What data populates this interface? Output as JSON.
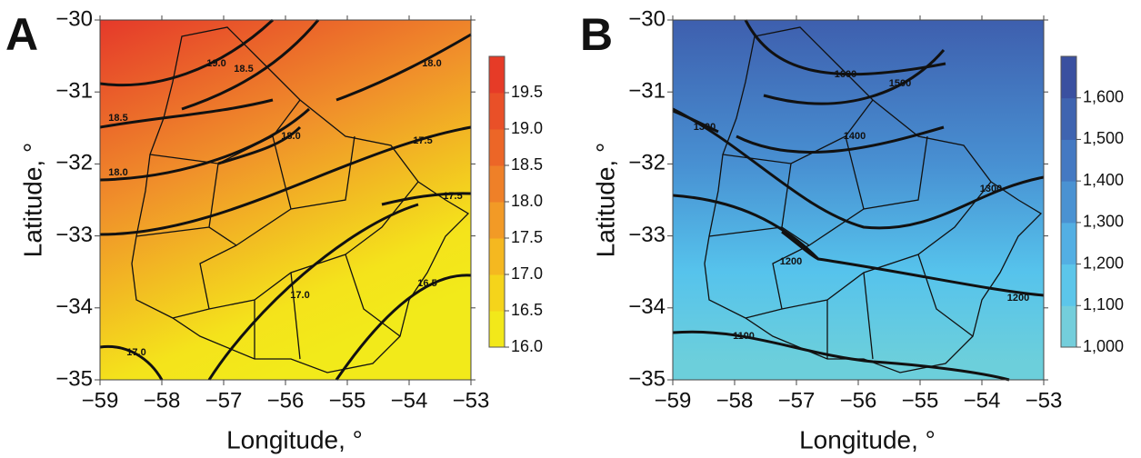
{
  "chart_data": [
    {
      "type": "contour",
      "panel": "A",
      "xlabel": "Longitude, °",
      "ylabel": "Latitude, °",
      "xlim": [
        -59,
        -53
      ],
      "ylim": [
        -35,
        -30
      ],
      "xticks": [
        {
          "value": -59,
          "label": "−59"
        },
        {
          "value": -58,
          "label": "−58"
        },
        {
          "value": -57,
          "label": "−57"
        },
        {
          "value": -56,
          "label": "−56"
        },
        {
          "value": -55,
          "label": "−55"
        },
        {
          "value": -54,
          "label": "−54"
        },
        {
          "value": -53,
          "label": "−53"
        }
      ],
      "yticks": [
        {
          "value": -30,
          "label": "−30"
        },
        {
          "value": -31,
          "label": "−31"
        },
        {
          "value": -32,
          "label": "−32"
        },
        {
          "value": -33,
          "label": "−33"
        },
        {
          "value": -34,
          "label": "−34"
        },
        {
          "value": -35,
          "label": "−35"
        }
      ],
      "colorbar": {
        "lim": [
          16,
          20
        ],
        "ticks": [
          19.5,
          {
            "value": 19,
            "label": "19.0"
          },
          18.5,
          {
            "value": 18,
            "label": "18.0"
          },
          17.5,
          {
            "value": 17,
            "label": "17.0"
          },
          16.5,
          {
            "value": 16,
            "label": "16.0"
          }
        ],
        "colors": [
          "#f2e81a",
          "#f5d41b",
          "#f5b820",
          "#f29a26",
          "#ef8028",
          "#ec6627",
          "#e95028",
          "#e63b27"
        ]
      },
      "contours": [
        {
          "value": 19,
          "label": "19.0"
        },
        {
          "value": 18.5,
          "label": "18.5"
        },
        {
          "value": 18,
          "label": "18.0"
        },
        {
          "value": 18.5,
          "label": "18.5"
        },
        {
          "value": 18,
          "label": "18.0"
        },
        {
          "value": 18,
          "label": "18.0"
        },
        {
          "value": 17.5,
          "label": "17.5"
        },
        {
          "value": 17.5,
          "label": "17.5"
        },
        {
          "value": 17,
          "label": "17.0"
        },
        {
          "value": 16.5,
          "label": "16.5"
        },
        {
          "value": 17,
          "label": "17.0"
        }
      ]
    },
    {
      "type": "contour",
      "panel": "B",
      "xlabel": "Longitude, °",
      "ylabel": "Latitude, °",
      "xlim": [
        -59,
        -53
      ],
      "ylim": [
        -35,
        -30
      ],
      "xticks": [
        {
          "value": -59,
          "label": "−59"
        },
        {
          "value": -58,
          "label": "−58"
        },
        {
          "value": -57,
          "label": "−57"
        },
        {
          "value": -56,
          "label": "−56"
        },
        {
          "value": -55,
          "label": "−55"
        },
        {
          "value": -54,
          "label": "−54"
        },
        {
          "value": -53,
          "label": "−53"
        }
      ],
      "yticks": [
        {
          "value": -30,
          "label": "−30"
        },
        {
          "value": -31,
          "label": "−31"
        },
        {
          "value": -32,
          "label": "−32"
        },
        {
          "value": -33,
          "label": "−33"
        },
        {
          "value": -34,
          "label": "−34"
        },
        {
          "value": -35,
          "label": "−35"
        }
      ],
      "colorbar": {
        "lim": [
          1000,
          1700
        ],
        "ticks": [
          {
            "value": 1600,
            "label": "1,600"
          },
          {
            "value": 1500,
            "label": "1,500"
          },
          {
            "value": 1400,
            "label": "1,400"
          },
          {
            "value": 1300,
            "label": "1,300"
          },
          {
            "value": 1200,
            "label": "1,200"
          },
          {
            "value": 1100,
            "label": "1,100"
          },
          {
            "value": 1000,
            "label": "1,000"
          }
        ],
        "colors": [
          "#74cedb",
          "#5cc6ea",
          "#53afe3",
          "#4a92d2",
          "#4479c2",
          "#3f64b0",
          "#3a50a0"
        ]
      },
      "contours": [
        {
          "value": 1600,
          "label": "1600"
        },
        {
          "value": 1500,
          "label": "1500"
        },
        {
          "value": 1400,
          "label": "1400"
        },
        {
          "value": 1300,
          "label": "1300"
        },
        {
          "value": 1300,
          "label": "1300"
        },
        {
          "value": 1200,
          "label": "1200"
        },
        {
          "value": 1200,
          "label": "1200"
        },
        {
          "value": 1100,
          "label": "1100"
        }
      ]
    }
  ]
}
